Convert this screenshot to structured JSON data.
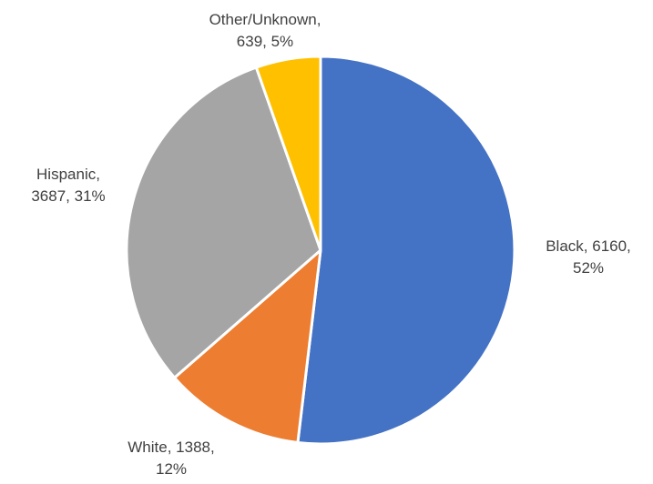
{
  "chart_data": {
    "type": "pie",
    "title": "",
    "start_angle_deg": 0,
    "direction": "clockwise",
    "slices": [
      {
        "label": "Black",
        "value": 6160,
        "percent": "52%",
        "color": "#4472C4",
        "label_lines": [
          "Black, 6160,",
          "52%"
        ]
      },
      {
        "label": "White",
        "value": 1388,
        "percent": "12%",
        "color": "#ED7D31",
        "label_lines": [
          "White, 1388,",
          "12%"
        ]
      },
      {
        "label": "Hispanic",
        "value": 3687,
        "percent": "31%",
        "color": "#A5A5A5",
        "label_lines": [
          "Hispanic,",
          "3687, 31%"
        ]
      },
      {
        "label": "Other/Unknown",
        "value": 639,
        "percent": "5%",
        "color": "#FFC000",
        "label_lines": [
          "Other/Unknown,",
          "639, 5%"
        ]
      }
    ],
    "legend": "none"
  }
}
